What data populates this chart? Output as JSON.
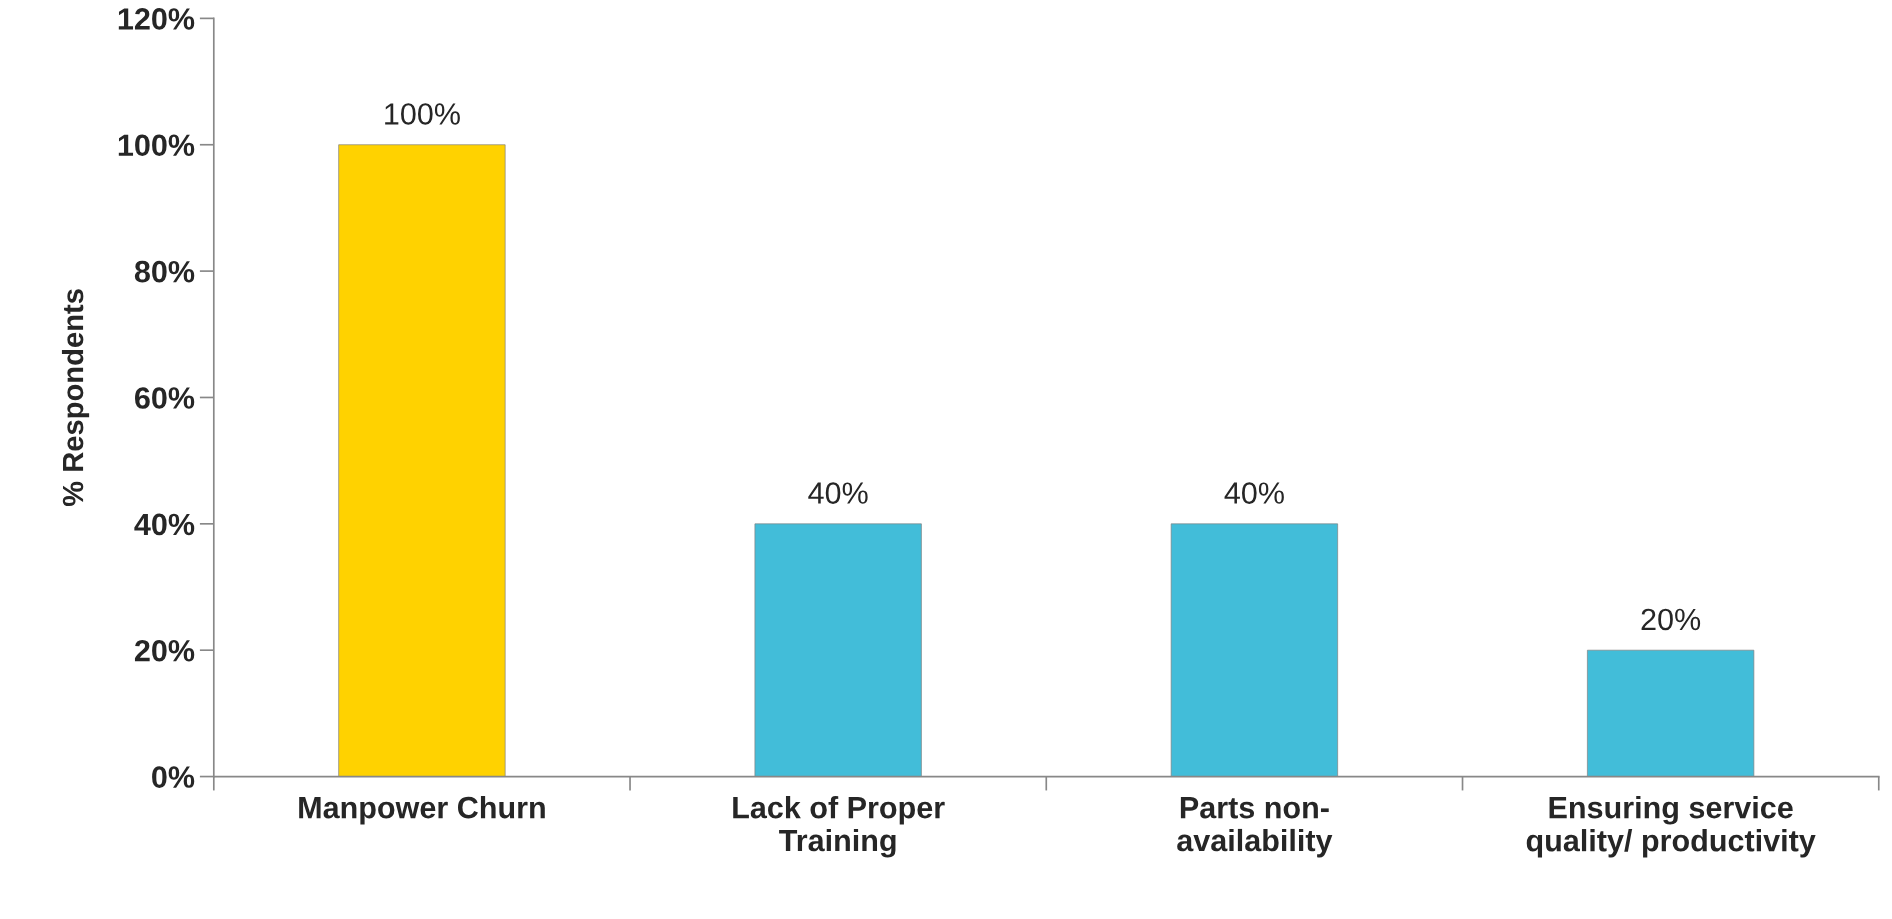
{
  "chart_data": {
    "type": "bar",
    "ylabel": "% Respondents",
    "categories": [
      "Manpower Churn",
      "Lack of Proper\nTraining",
      "Parts non-\navailability",
      "Ensuring service\nquality/ productivity"
    ],
    "values": [
      100,
      40,
      40,
      20
    ],
    "colors": [
      "#ffd200",
      "#42bdd9",
      "#42bdd9",
      "#42bdd9"
    ],
    "value_labels": [
      "100%",
      "40%",
      "40%",
      "20%"
    ],
    "ylim": [
      0,
      120
    ],
    "yticks": [
      {
        "value": 0,
        "label": "0%"
      },
      {
        "value": 20,
        "label": "20%"
      },
      {
        "value": 40,
        "label": "40%"
      },
      {
        "value": 60,
        "label": "60%"
      },
      {
        "value": 80,
        "label": "80%"
      },
      {
        "value": 100,
        "label": "100%"
      },
      {
        "value": 120,
        "label": "120%"
      }
    ],
    "grid": false
  }
}
